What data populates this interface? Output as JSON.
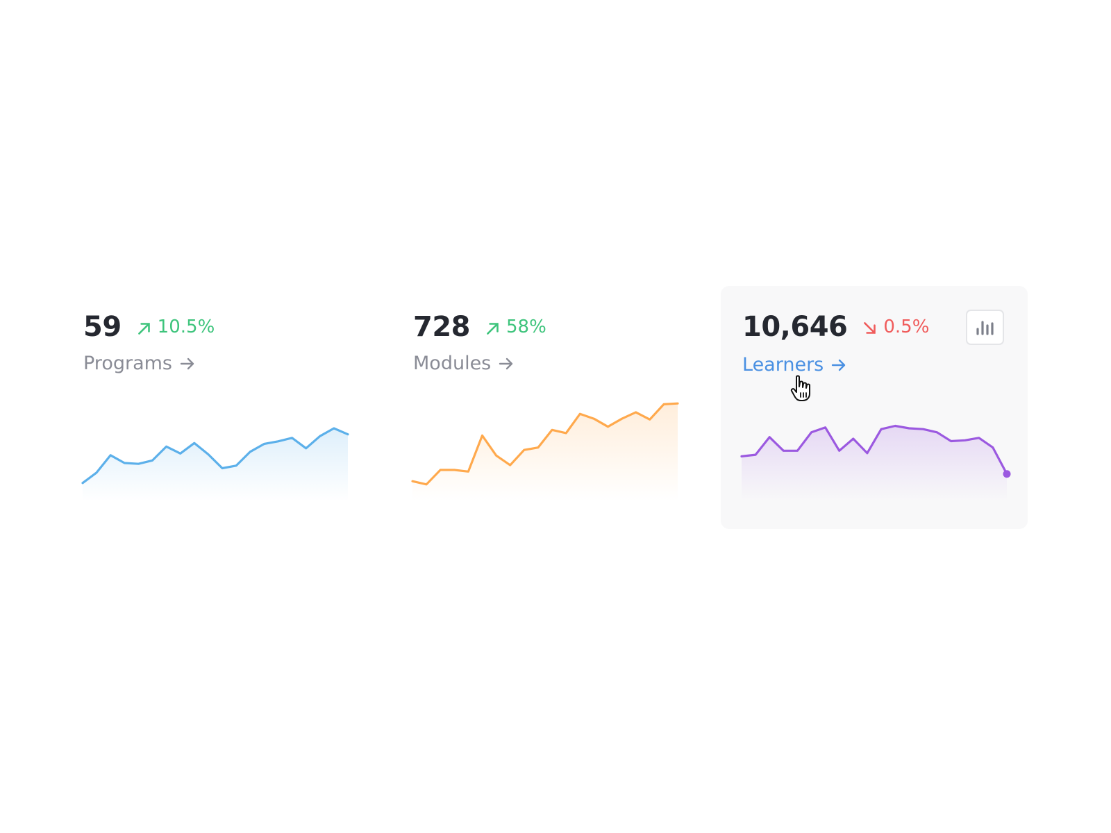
{
  "cards": [
    {
      "value": "59",
      "delta": "10.5%",
      "trend": "up",
      "label": "Programs",
      "color": "#5cb0ea",
      "active": false
    },
    {
      "value": "728",
      "delta": "58%",
      "trend": "up",
      "label": "Modules",
      "color": "#ffa94d",
      "active": false
    },
    {
      "value": "10,646",
      "delta": "0.5%",
      "trend": "down",
      "label": "Learners",
      "color": "#9b59e0",
      "active": true
    }
  ],
  "colors": {
    "positive": "#3ec47c",
    "negative": "#f05b5b",
    "link_active": "#4a90e2",
    "label_muted": "#8a8c96",
    "value_text": "#252830"
  },
  "icons": {
    "trend_up": "arrow-up-right-icon",
    "trend_down": "arrow-down-right-icon",
    "link": "arrow-right-icon",
    "chart_button": "bar-chart-icon",
    "cursor": "hand-pointer-icon"
  },
  "chart_data": [
    {
      "type": "area",
      "title": "Programs",
      "x": [
        1,
        2,
        3,
        4,
        5,
        6,
        7,
        8,
        9,
        10,
        11,
        12,
        13,
        14,
        15,
        16,
        17,
        18,
        19,
        20
      ],
      "values": [
        21,
        33,
        53,
        44,
        43,
        47,
        63,
        55,
        67,
        54,
        38,
        41,
        57,
        66,
        69,
        73,
        61,
        75,
        84,
        77
      ],
      "ylim": [
        0,
        120
      ],
      "color": "#5cb0ea"
    },
    {
      "type": "area",
      "title": "Modules",
      "x": [
        1,
        2,
        3,
        4,
        5,
        6,
        7,
        8,
        9,
        10,
        11,
        12,
        13,
        14,
        15,
        16,
        17,
        18,
        19,
        20
      ],
      "values": [
        25,
        21,
        39,
        39,
        37,
        82,
        57,
        45,
        64,
        67,
        89,
        85,
        109,
        103,
        93,
        103,
        111,
        102,
        121,
        122
      ],
      "ylim": [
        0,
        130
      ],
      "color": "#ffa94d"
    },
    {
      "type": "area",
      "title": "Learners",
      "x": [
        1,
        2,
        3,
        4,
        5,
        6,
        7,
        8,
        9,
        10,
        11,
        12,
        13,
        14,
        15,
        16,
        17,
        18,
        19,
        20
      ],
      "values": [
        56,
        58,
        80,
        63,
        63,
        86,
        92,
        63,
        78,
        60,
        90,
        94,
        91,
        90,
        86,
        75,
        76,
        79,
        67,
        34
      ],
      "ylim": [
        0,
        130
      ],
      "color": "#9b59e0",
      "highlight_last_point": true
    }
  ]
}
